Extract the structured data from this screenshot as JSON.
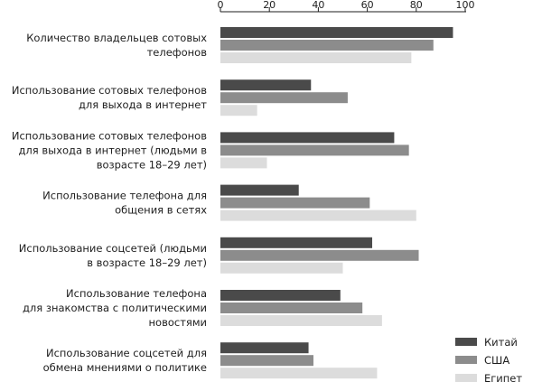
{
  "chart_data": {
    "type": "bar",
    "orientation": "horizontal",
    "title": "",
    "xlabel": "",
    "ylabel": "",
    "xlim": [
      0,
      100
    ],
    "xticks": [
      0,
      20,
      40,
      60,
      80,
      100
    ],
    "grid": false,
    "legend_position": "bottom-right",
    "categories": [
      [
        "Количество владельцев сотовых",
        "телефонов"
      ],
      [
        "Использование сотовых телефонов",
        "для выхода в интернет"
      ],
      [
        "Использование сотовых телефонов",
        "для выхода в интернет (людьми в",
        "возрасте 18–29 лет)"
      ],
      [
        "Использование телефона для",
        "общения в сетях"
      ],
      [
        "Использование соцсетей (людьми",
        "в возрасте 18–29 лет)"
      ],
      [
        "Использование телефона",
        "для знакомства с политическими",
        "новостями"
      ],
      [
        "Использование соцсетей для",
        "обмена мнениями о политике"
      ]
    ],
    "series": [
      {
        "name": "Китай",
        "color": "#4a4a4a",
        "values": [
          95,
          37,
          71,
          32,
          62,
          49,
          36
        ]
      },
      {
        "name": "США",
        "color": "#8c8c8c",
        "values": [
          87,
          52,
          77,
          61,
          81,
          58,
          38
        ]
      },
      {
        "name": "Египет",
        "color": "#dcdcdc",
        "values": [
          78,
          15,
          19,
          80,
          50,
          66,
          64
        ]
      }
    ]
  }
}
